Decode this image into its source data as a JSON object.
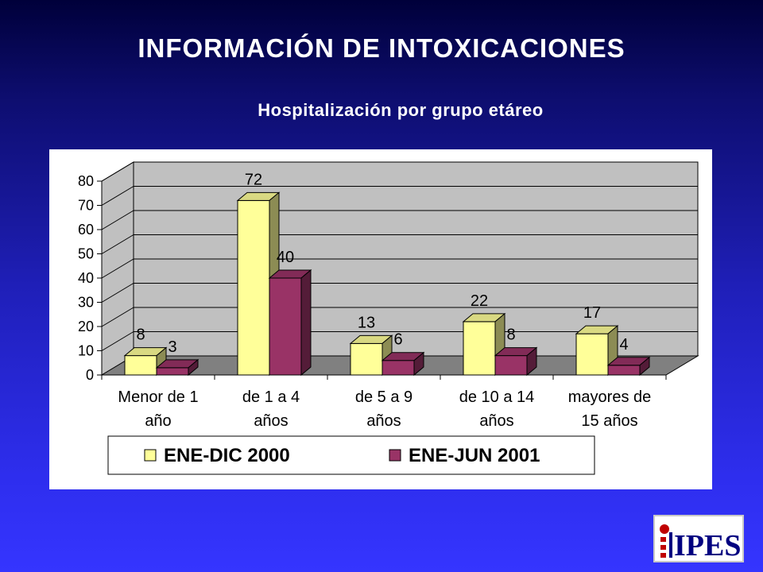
{
  "header": {
    "title": "INFORMACIÓN DE INTOXICACIONES",
    "subtitle": "Hospitalización por grupo etáreo"
  },
  "logo": {
    "text": "IPES",
    "icon": "ipes-logo"
  },
  "colors": {
    "series_1": "#ffff99",
    "series_2": "#993366",
    "wall": "#c0c0c0",
    "floor": "#808080"
  },
  "chart_data": {
    "type": "bar",
    "three_d": true,
    "categories": [
      [
        "Menor de 1",
        "año"
      ],
      [
        "de 1 a 4",
        "años"
      ],
      [
        "de 5 a 9",
        "años"
      ],
      [
        "de 10 a 14",
        "años"
      ],
      [
        "mayores de",
        "15 años"
      ]
    ],
    "series": [
      {
        "name": "ENE-DIC 2000",
        "values": [
          8,
          72,
          13,
          22,
          17
        ]
      },
      {
        "name": "ENE-JUN 2001",
        "values": [
          3,
          40,
          6,
          8,
          4
        ]
      }
    ],
    "yticks": [
      "0",
      "10",
      "20",
      "30",
      "40",
      "50",
      "60",
      "70",
      "80"
    ],
    "ylim": [
      0,
      80
    ],
    "grid": true,
    "legend_position": "bottom",
    "data_labels": true
  }
}
